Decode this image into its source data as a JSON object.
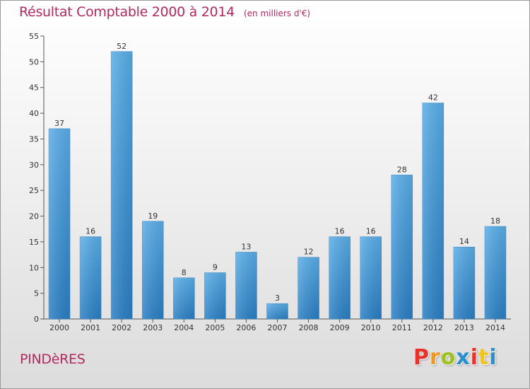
{
  "header": {
    "title": "Résultat Comptable 2000 à 2014",
    "subtitle": "(en milliers d'€)"
  },
  "footer": {
    "town": "PINDèRES",
    "logo_text": "Proxiti",
    "logo_colors": [
      "#e8322a",
      "#f29a1f",
      "#9cc21b",
      "#2a8fd0",
      "#e8322a",
      "#f2c21f",
      "#2a8fd0"
    ]
  },
  "chart_data": {
    "type": "bar",
    "categories": [
      "2000",
      "2001",
      "2002",
      "2003",
      "2004",
      "2005",
      "2006",
      "2007",
      "2008",
      "2009",
      "2010",
      "2011",
      "2012",
      "2013",
      "2014"
    ],
    "values": [
      37,
      16,
      52,
      19,
      8,
      9,
      13,
      3,
      12,
      16,
      16,
      28,
      42,
      14,
      18
    ],
    "title": "Résultat Comptable 2000 à 2014",
    "xlabel": "",
    "ylabel": "",
    "ylim": [
      0,
      55
    ],
    "yticks": [
      0,
      5,
      10,
      15,
      20,
      25,
      30,
      35,
      40,
      45,
      50,
      55
    ],
    "grid": false,
    "bar_color_top": "#5aaee8",
    "bar_color_bottom": "#2a7fc4",
    "show_value_labels": true
  }
}
